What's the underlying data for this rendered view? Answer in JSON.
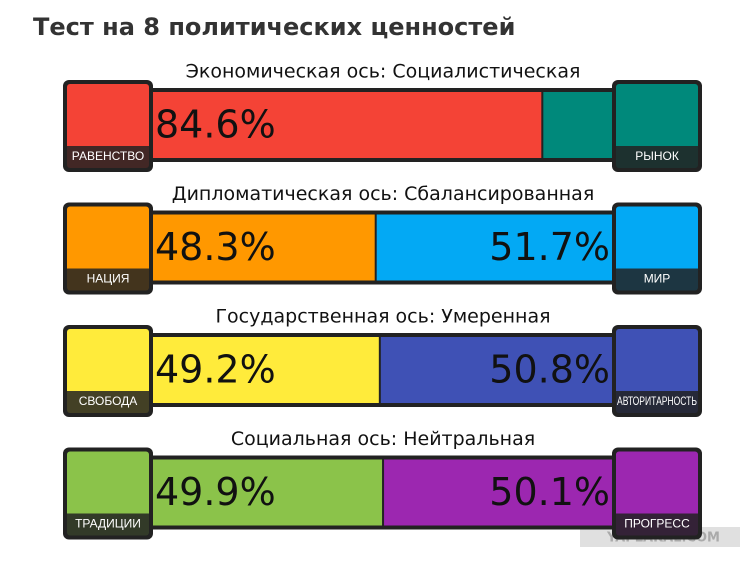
{
  "header": {
    "title": "Тест на 8 политических ценностей"
  },
  "watermark": "YAPLAKAL.COM",
  "chart_data": [
    {
      "type": "stacked-bar",
      "title": "Экономическая ось: Социалистическая",
      "xlim": [
        0,
        100
      ],
      "series": [
        {
          "name": "РАВЕНСТВО",
          "color": "#f44336",
          "values": [
            84.6
          ],
          "value_labels": [
            "84.6%"
          ]
        },
        {
          "name": "РЫНОК",
          "color": "#00897b",
          "values": [
            15.4
          ]
        }
      ]
    },
    {
      "type": "stacked-bar",
      "title": "Дипломатическая ось: Сбалансированная",
      "xlim": [
        0,
        100
      ],
      "series": [
        {
          "name": "НАЦИЯ",
          "color": "#ff9800",
          "values": [
            48.3
          ],
          "value_labels": [
            "48.3%"
          ]
        },
        {
          "name": "МИР",
          "color": "#03a9f4",
          "values": [
            51.7
          ],
          "value_labels": [
            "51.7%"
          ]
        }
      ]
    },
    {
      "type": "stacked-bar",
      "title": "Государственная ось: Умеренная",
      "xlim": [
        0,
        100
      ],
      "series": [
        {
          "name": "СВОБОДА",
          "color": "#ffeb3b",
          "values": [
            49.2
          ],
          "value_labels": [
            "49.2%"
          ]
        },
        {
          "name": "АВТОРИТАРНОСТЬ",
          "color": "#3f51b5",
          "values": [
            50.8
          ],
          "value_labels": [
            "50.8%"
          ]
        }
      ]
    },
    {
      "type": "stacked-bar",
      "title": "Социальная ось: Нейтральная",
      "xlim": [
        0,
        100
      ],
      "series": [
        {
          "name": "ТРАДИЦИИ",
          "color": "#8bc34a",
          "values": [
            49.9
          ],
          "value_labels": [
            "49.9%"
          ]
        },
        {
          "name": "ПРОГРЕСС",
          "color": "#9c27b0",
          "values": [
            50.1
          ],
          "value_labels": [
            "50.1%"
          ]
        }
      ]
    }
  ]
}
